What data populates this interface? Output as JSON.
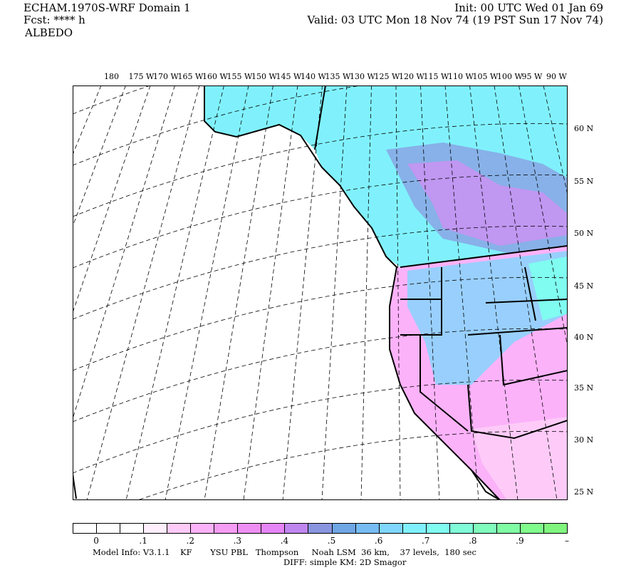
{
  "header": {
    "title": "ECHAM.1970S-WRF Domain 1",
    "forecast": "Fcst: **** h",
    "field": "ALBEDO",
    "init": "Init: 00 UTC Wed 01 Jan 69",
    "valid": "Valid: 03 UTC Mon 18 Nov 74 (19 PST Sun 17 Nov 74)"
  },
  "map": {
    "lon_labels": [
      "180",
      "175 W",
      "170 W",
      "165 W",
      "160 W",
      "155 W",
      "150 W",
      "145 W",
      "140 W",
      "135 W",
      "130 W",
      "125 W",
      "120 W",
      "115 W",
      "110 W",
      "105 W",
      "100 W",
      "95 W",
      "90 W"
    ],
    "lat_labels": [
      "60 N",
      "55 N",
      "50 N",
      "45 N",
      "40 N",
      "35 N",
      "30 N",
      "25 N"
    ]
  },
  "colorbar": {
    "colors": [
      "#ffffff",
      "#ffffff",
      "#ffffff",
      "#ffeefc",
      "#fecbf8",
      "#fbb2f9",
      "#f59cf5",
      "#ef8ff4",
      "#e685f6",
      "#c086ef",
      "#8a95e0",
      "#6fa6e4",
      "#76bcf3",
      "#80d6fc",
      "#80f1fc",
      "#80fcf0",
      "#80fcd8",
      "#80fcbc",
      "#80fca4",
      "#80fc8c",
      "#80f57e"
    ],
    "labels": [
      "0",
      ".1",
      ".2",
      ".3",
      ".4",
      ".5",
      ".6",
      ".7",
      ".8",
      ".9",
      "–"
    ]
  },
  "footer": {
    "model_info": "Model Info: V3.1.1    KF       YSU PBL   Thompson     Noah LSM  36 km,    37 levels,  180 sec",
    "diff": "DIFF: simple KM: 2D Smagor"
  }
}
